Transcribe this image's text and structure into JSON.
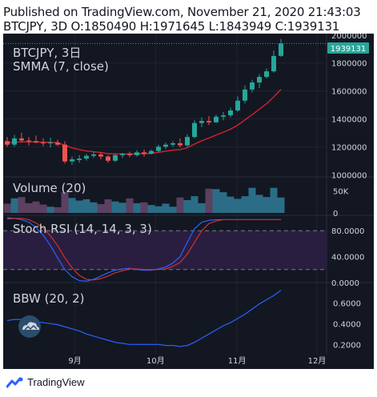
{
  "header": {
    "published_line": "Published on TradingView.com, November 21, 2020 21:43:03",
    "ohlc_line": "BTCJPY, 3D O:1850490 H:1971645 L:1843949 C:1939131"
  },
  "footer": {
    "brand": "TradingView"
  },
  "colors": {
    "background": "#131722",
    "up": "#26a69a",
    "down": "#ef5350",
    "smma": "#e0232e",
    "volume_up": "#2b6d87",
    "volume_down": "#5b4060",
    "stoch_k": "#2962ff",
    "stoch_d": "#d32f2f",
    "stoch_band": "#3b2550",
    "bbw": "#2962ff",
    "last_price": "#26a69a"
  },
  "chart_data": [
    {
      "type": "candlestick",
      "title": "BTCJPY, 3日",
      "indicator_label": "SMMA (7, close)",
      "last_price_label": "1939131",
      "y_ticks": [
        "2000000",
        "1800000",
        "1600000",
        "1400000",
        "1200000",
        "1000000"
      ],
      "ylim": [
        990000,
        2010000
      ],
      "x_ticks": [
        "9月",
        "10月",
        "11月",
        "12月"
      ],
      "candles": [
        {
          "o": 1240000,
          "h": 1270000,
          "l": 1200000,
          "c": 1215000
        },
        {
          "o": 1215000,
          "h": 1285000,
          "l": 1200000,
          "c": 1260000
        },
        {
          "o": 1260000,
          "h": 1300000,
          "l": 1230000,
          "c": 1245000
        },
        {
          "o": 1245000,
          "h": 1270000,
          "l": 1210000,
          "c": 1240000
        },
        {
          "o": 1240000,
          "h": 1280000,
          "l": 1225000,
          "c": 1230000
        },
        {
          "o": 1230000,
          "h": 1260000,
          "l": 1205000,
          "c": 1225000
        },
        {
          "o": 1225000,
          "h": 1265000,
          "l": 1195000,
          "c": 1230000
        },
        {
          "o": 1230000,
          "h": 1250000,
          "l": 1205000,
          "c": 1215000
        },
        {
          "o": 1215000,
          "h": 1240000,
          "l": 1080000,
          "c": 1095000
        },
        {
          "o": 1095000,
          "h": 1130000,
          "l": 1070000,
          "c": 1110000
        },
        {
          "o": 1105000,
          "h": 1140000,
          "l": 1085000,
          "c": 1115000
        },
        {
          "o": 1115000,
          "h": 1150000,
          "l": 1100000,
          "c": 1135000
        },
        {
          "o": 1135000,
          "h": 1165000,
          "l": 1120000,
          "c": 1145000
        },
        {
          "o": 1145000,
          "h": 1160000,
          "l": 1110000,
          "c": 1130000
        },
        {
          "o": 1130000,
          "h": 1140000,
          "l": 1085000,
          "c": 1100000
        },
        {
          "o": 1100000,
          "h": 1150000,
          "l": 1090000,
          "c": 1140000
        },
        {
          "o": 1140000,
          "h": 1155000,
          "l": 1120000,
          "c": 1150000
        },
        {
          "o": 1150000,
          "h": 1165000,
          "l": 1125000,
          "c": 1140000
        },
        {
          "o": 1140000,
          "h": 1175000,
          "l": 1130000,
          "c": 1160000
        },
        {
          "o": 1160000,
          "h": 1180000,
          "l": 1130000,
          "c": 1150000
        },
        {
          "o": 1150000,
          "h": 1180000,
          "l": 1145000,
          "c": 1170000
        },
        {
          "o": 1170000,
          "h": 1215000,
          "l": 1160000,
          "c": 1200000
        },
        {
          "o": 1200000,
          "h": 1230000,
          "l": 1185000,
          "c": 1215000
        },
        {
          "o": 1215000,
          "h": 1240000,
          "l": 1200000,
          "c": 1225000
        },
        {
          "o": 1225000,
          "h": 1260000,
          "l": 1195000,
          "c": 1210000
        },
        {
          "o": 1210000,
          "h": 1290000,
          "l": 1200000,
          "c": 1270000
        },
        {
          "o": 1270000,
          "h": 1390000,
          "l": 1260000,
          "c": 1370000
        },
        {
          "o": 1370000,
          "h": 1410000,
          "l": 1340000,
          "c": 1385000
        },
        {
          "o": 1385000,
          "h": 1420000,
          "l": 1355000,
          "c": 1375000
        },
        {
          "o": 1375000,
          "h": 1430000,
          "l": 1370000,
          "c": 1415000
        },
        {
          "o": 1415000,
          "h": 1450000,
          "l": 1390000,
          "c": 1425000
        },
        {
          "o": 1425000,
          "h": 1480000,
          "l": 1410000,
          "c": 1460000
        },
        {
          "o": 1460000,
          "h": 1560000,
          "l": 1450000,
          "c": 1530000
        },
        {
          "o": 1530000,
          "h": 1640000,
          "l": 1510000,
          "c": 1610000
        },
        {
          "o": 1610000,
          "h": 1680000,
          "l": 1590000,
          "c": 1660000
        },
        {
          "o": 1660000,
          "h": 1720000,
          "l": 1620000,
          "c": 1700000
        },
        {
          "o": 1700000,
          "h": 1760000,
          "l": 1690000,
          "c": 1740000
        },
        {
          "o": 1740000,
          "h": 1890000,
          "l": 1730000,
          "c": 1850000
        },
        {
          "o": 1850490,
          "h": 1971645,
          "l": 1843949,
          "c": 1939131
        }
      ],
      "smma": [
        1230000,
        1232000,
        1235000,
        1236000,
        1235000,
        1233000,
        1232000,
        1230000,
        1210000,
        1193000,
        1180000,
        1170000,
        1164000,
        1159000,
        1150000,
        1149000,
        1149000,
        1148000,
        1150000,
        1150000,
        1153000,
        1160000,
        1168000,
        1176000,
        1180000,
        1193000,
        1219000,
        1243000,
        1262000,
        1284000,
        1304000,
        1326000,
        1355000,
        1392000,
        1430000,
        1469000,
        1508000,
        1557000,
        1611000
      ]
    },
    {
      "type": "bar",
      "title": "Volume (20)",
      "y_ticks": [
        "50K",
        "0"
      ],
      "ylim": [
        0,
        80000
      ],
      "values": [
        21000,
        33000,
        36000,
        22000,
        26000,
        19000,
        14000,
        13000,
        47000,
        34000,
        28000,
        31000,
        24000,
        20000,
        31000,
        26000,
        23000,
        33000,
        22000,
        24000,
        18000,
        15000,
        21000,
        14000,
        35000,
        29000,
        38000,
        22000,
        55000,
        54000,
        47000,
        37000,
        32000,
        38000,
        57000,
        41000,
        36000,
        57000,
        35000
      ]
    },
    {
      "type": "line",
      "title": "Stoch RSI (14, 14, 3, 3)",
      "y_ticks": [
        "80.0000",
        "40.0000",
        "0.0000"
      ],
      "ylim": [
        0,
        100
      ],
      "bands": [
        20,
        80
      ],
      "series": [
        {
          "values": [
            100,
            99,
            97,
            93,
            85,
            73,
            57,
            38,
            20,
            9,
            3,
            2,
            5,
            10,
            15,
            19,
            21,
            22,
            20,
            19,
            19,
            21,
            24,
            30,
            40,
            62,
            83,
            93,
            96,
            97,
            97,
            97,
            97,
            97,
            97,
            97,
            97,
            97,
            97
          ]
        },
        {
          "values": [
            98,
            99,
            99,
            97,
            92,
            84,
            72,
            57,
            38,
            23,
            11,
            5,
            4,
            6,
            10,
            15,
            18,
            21,
            21,
            20,
            20,
            20,
            21,
            25,
            31,
            44,
            62,
            80,
            91,
            95,
            97,
            97,
            97,
            97,
            97,
            97,
            97,
            97,
            97
          ]
        }
      ]
    },
    {
      "type": "line",
      "title": "BBW (20, 2)",
      "y_ticks": [
        "0.6000",
        "0.4000",
        "0.2000"
      ],
      "ylim": [
        0.11,
        0.78
      ],
      "series": [
        {
          "values": [
            0.43,
            0.44,
            0.44,
            0.43,
            0.42,
            0.41,
            0.4,
            0.39,
            0.37,
            0.35,
            0.33,
            0.3,
            0.28,
            0.26,
            0.24,
            0.22,
            0.21,
            0.2,
            0.2,
            0.2,
            0.2,
            0.2,
            0.19,
            0.19,
            0.18,
            0.19,
            0.22,
            0.26,
            0.3,
            0.34,
            0.38,
            0.41,
            0.45,
            0.49,
            0.54,
            0.59,
            0.63,
            0.67,
            0.72
          ]
        }
      ]
    }
  ]
}
